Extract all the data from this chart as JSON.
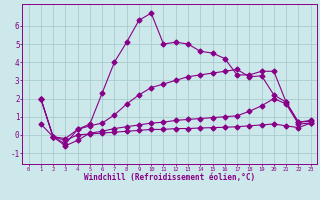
{
  "xlabel": "Windchill (Refroidissement éolien,°C)",
  "bg_color": "#cce8ea",
  "grid_color": "#a8cccc",
  "line_color": "#880088",
  "x_ticks": [
    0,
    1,
    2,
    3,
    4,
    5,
    6,
    7,
    8,
    9,
    10,
    11,
    12,
    13,
    14,
    15,
    16,
    17,
    18,
    19,
    20,
    21,
    22,
    23
  ],
  "y_ticks": [
    -1,
    0,
    1,
    2,
    3,
    4,
    5,
    6
  ],
  "ylim": [
    -1.6,
    7.2
  ],
  "xlim": [
    -0.5,
    23.5
  ],
  "curves": [
    {
      "x": [
        1,
        2,
        3,
        4,
        5,
        6,
        7,
        8,
        9,
        10,
        11,
        12,
        13,
        14,
        15,
        16,
        17,
        18,
        19,
        20,
        21,
        22,
        23
      ],
      "y": [
        0.6,
        -0.1,
        -0.5,
        0.3,
        0.6,
        2.3,
        4.0,
        5.1,
        6.3,
        6.7,
        5.0,
        5.1,
        5.0,
        4.6,
        4.5,
        4.2,
        3.3,
        3.3,
        3.5,
        3.5,
        1.8,
        0.7,
        0.8
      ],
      "marker": "D",
      "markersize": 2.5
    },
    {
      "x": [
        1,
        2,
        3,
        4,
        5,
        6,
        7,
        8,
        9,
        10,
        11,
        12,
        13,
        14,
        15,
        16,
        17,
        18,
        19,
        20,
        21,
        22,
        23
      ],
      "y": [
        2.0,
        -0.1,
        -0.2,
        0.3,
        0.5,
        0.65,
        1.1,
        1.7,
        2.2,
        2.6,
        2.8,
        3.0,
        3.2,
        3.3,
        3.4,
        3.5,
        3.6,
        3.2,
        3.25,
        2.2,
        1.8,
        0.7,
        0.75
      ],
      "marker": "D",
      "markersize": 2.5
    },
    {
      "x": [
        1,
        2,
        3,
        4,
        5,
        6,
        7,
        8,
        9,
        10,
        11,
        12,
        13,
        14,
        15,
        16,
        17,
        18,
        19,
        20,
        21,
        22,
        23
      ],
      "y": [
        2.0,
        -0.1,
        -0.6,
        -0.3,
        0.1,
        0.2,
        0.35,
        0.45,
        0.55,
        0.65,
        0.7,
        0.8,
        0.85,
        0.9,
        0.95,
        1.0,
        1.05,
        1.3,
        1.6,
        2.0,
        1.7,
        0.6,
        0.65
      ],
      "marker": "D",
      "markersize": 2.5
    },
    {
      "x": [
        1,
        2,
        3,
        4,
        5,
        6,
        7,
        8,
        9,
        10,
        11,
        12,
        13,
        14,
        15,
        16,
        17,
        18,
        19,
        20,
        21,
        22,
        23
      ],
      "y": [
        2.0,
        -0.1,
        -0.3,
        0.0,
        0.05,
        0.1,
        0.15,
        0.2,
        0.25,
        0.3,
        0.3,
        0.35,
        0.35,
        0.38,
        0.4,
        0.42,
        0.45,
        0.5,
        0.55,
        0.6,
        0.5,
        0.4,
        0.65
      ],
      "marker": "D",
      "markersize": 2.5
    }
  ]
}
